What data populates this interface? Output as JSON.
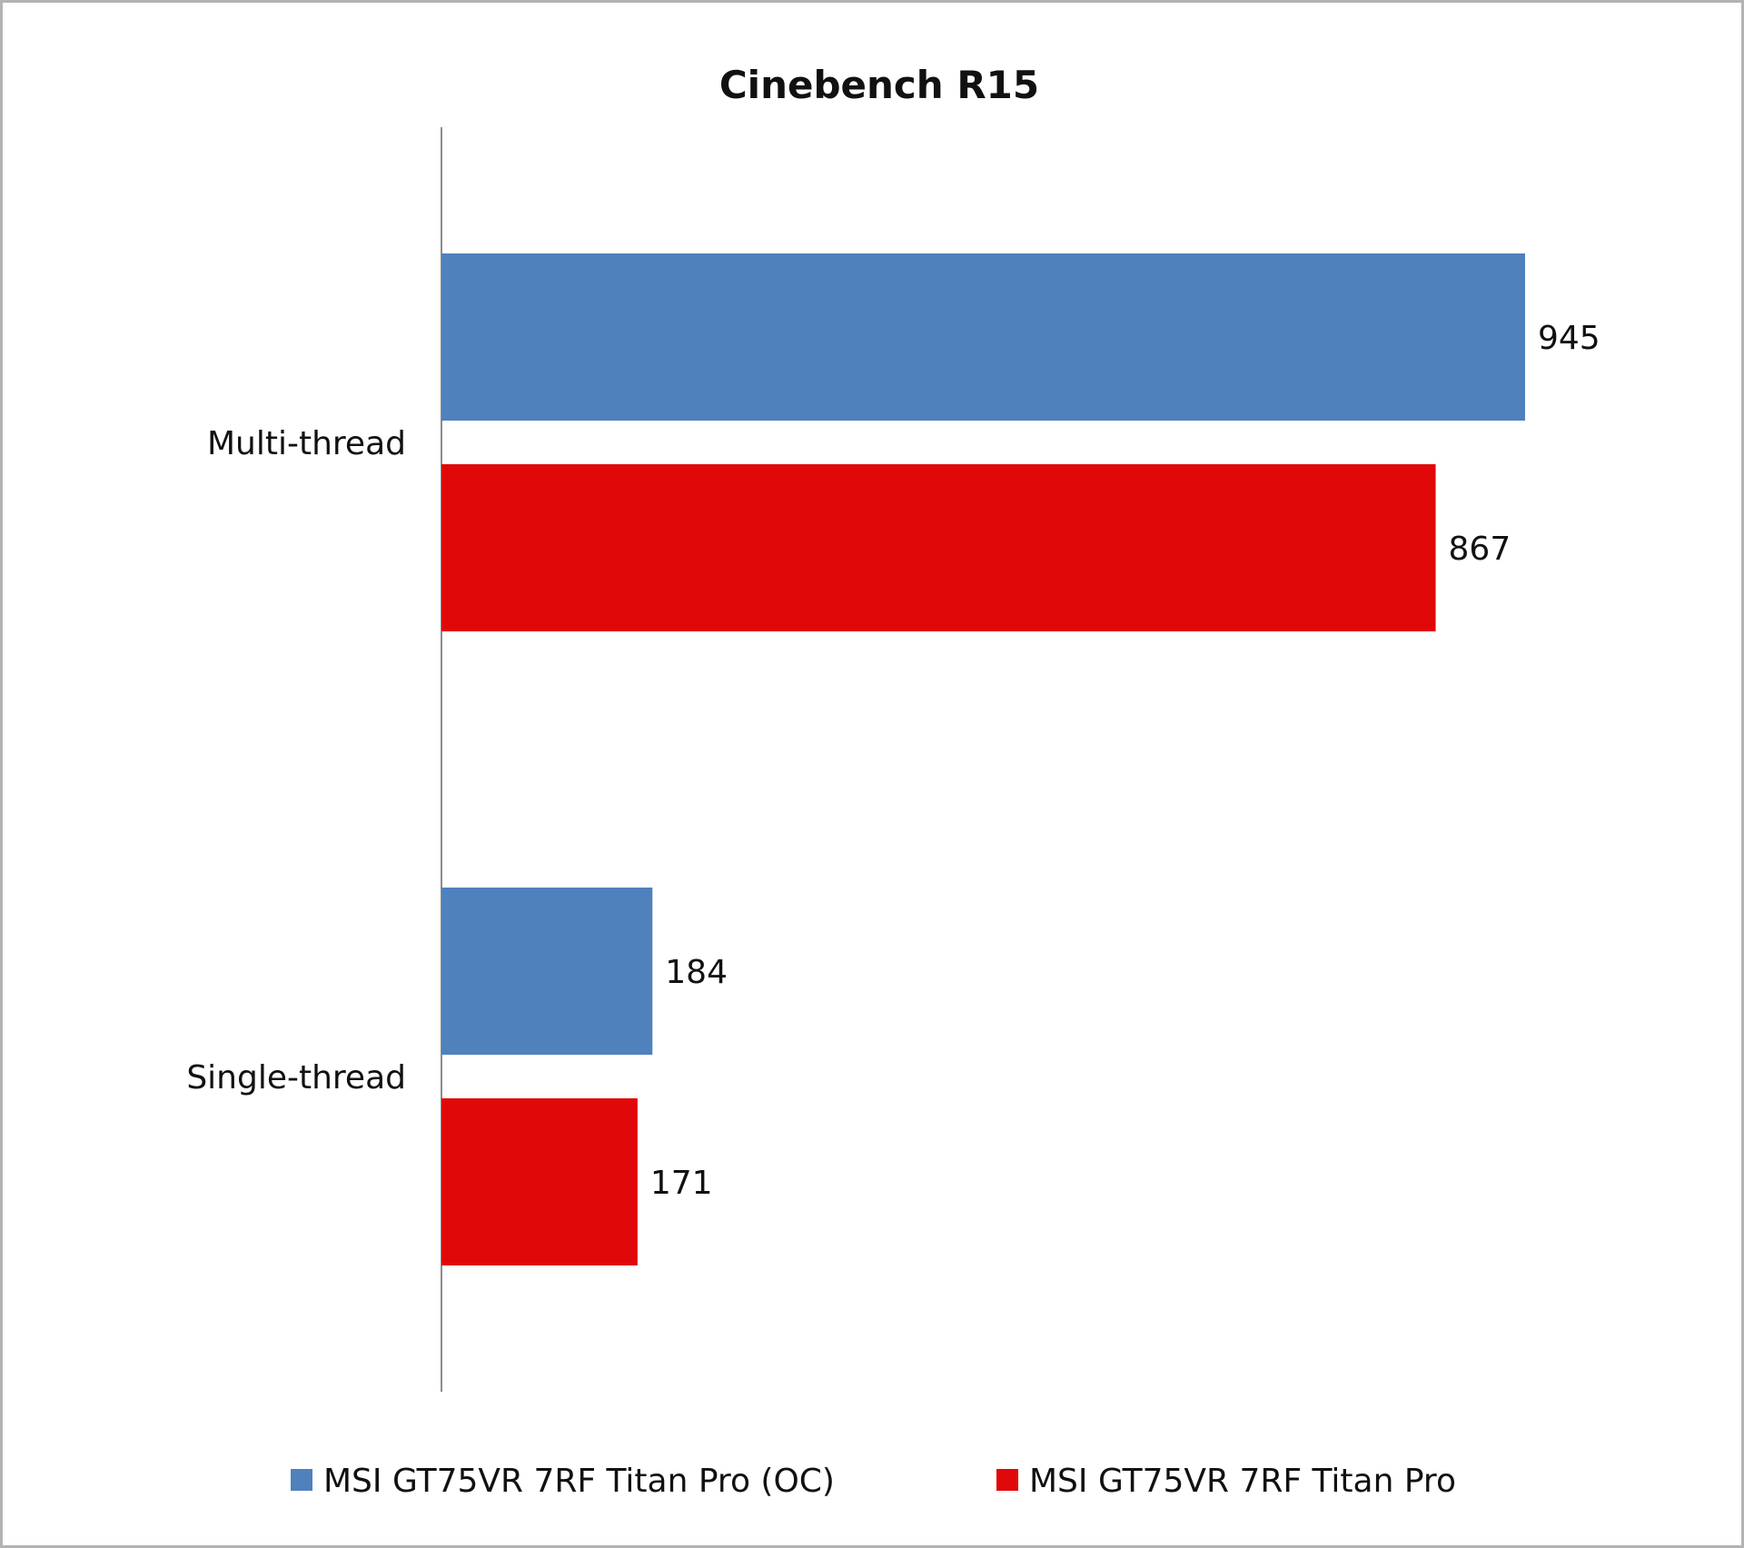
{
  "chart_data": {
    "type": "bar",
    "orientation": "horizontal",
    "title": "Cinebench R15",
    "xlabel": "",
    "ylabel": "",
    "categories": [
      "Multi-thread",
      "Single-thread"
    ],
    "series": [
      {
        "name": "MSI GT75VR 7RF Titan Pro (OC)",
        "color": "#4f81bd",
        "values": [
          945,
          184
        ]
      },
      {
        "name": "MSI GT75VR 7RF Titan Pro",
        "color": "#e00808",
        "values": [
          867,
          171
        ]
      }
    ],
    "xlim": [
      0,
      1000
    ],
    "grid": false,
    "data_labels": true,
    "legend_position": "bottom"
  }
}
